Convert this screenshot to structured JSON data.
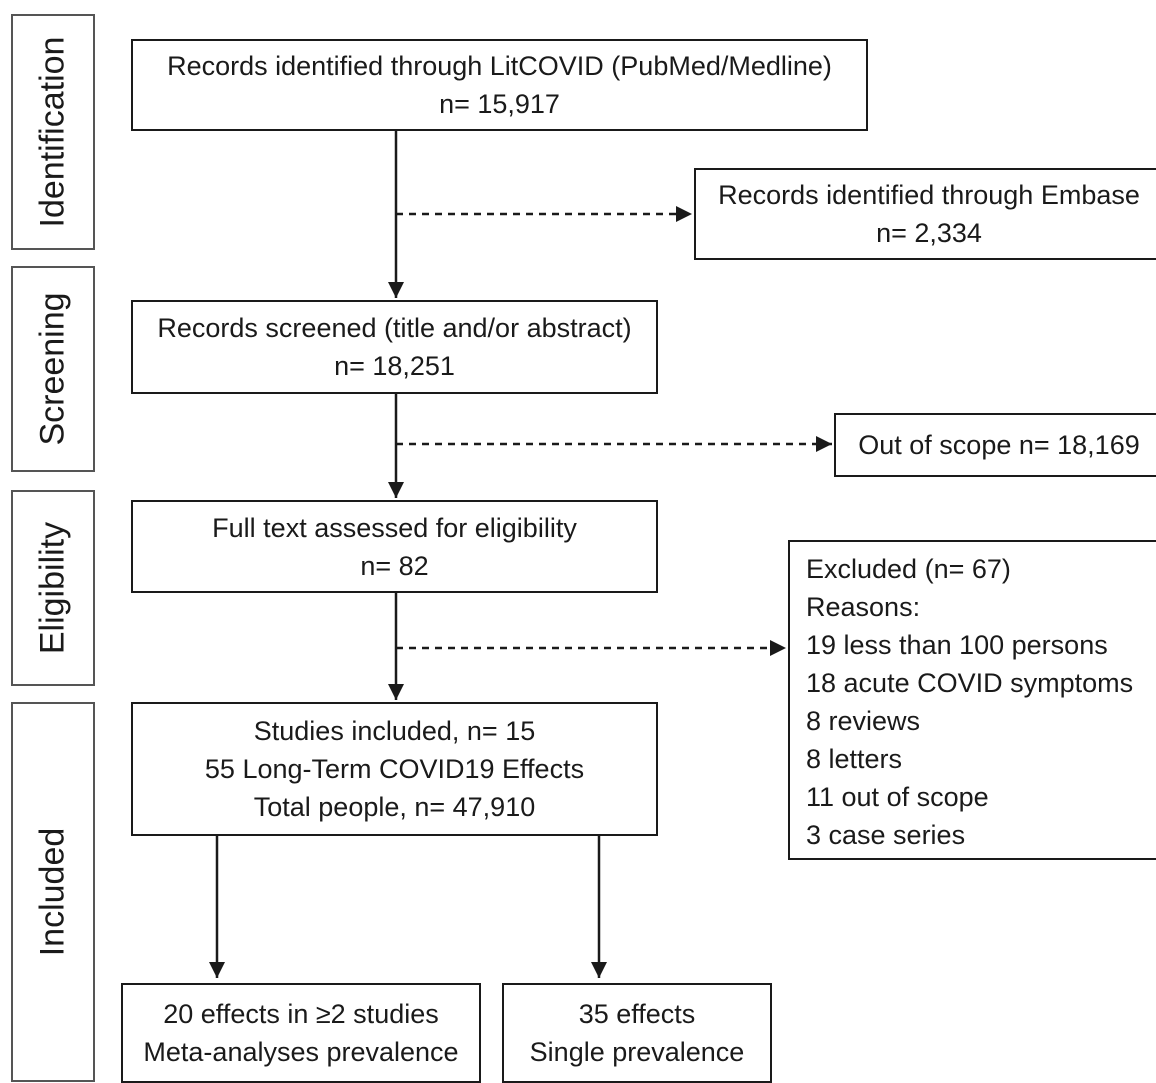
{
  "phases": {
    "identification": "Identification",
    "screening": "Screening",
    "eligibility": "Eligibility",
    "included": "Included"
  },
  "boxes": {
    "litcovid": [
      "Records identified through LitCOVID (PubMed/Medline)",
      "n= 15,917"
    ],
    "embase": [
      "Records identified through Embase",
      "n= 2,334"
    ],
    "screened": [
      "Records screened (title and/or abstract)",
      "n= 18,251"
    ],
    "out_of_scope": [
      "Out of scope n= 18,169"
    ],
    "full_text": [
      "Full text assessed for eligibility",
      "n= 82"
    ],
    "excluded": [
      "Excluded (n= 67)",
      "Reasons:",
      "19 less than 100 persons",
      "18 acute COVID symptoms",
      "8 reviews",
      "8 letters",
      "11 out of scope",
      "3 case series"
    ],
    "included": [
      "Studies included, n= 15",
      "55 Long-Term COVID19 Effects",
      "Total people, n= 47,910"
    ],
    "meta": [
      "20 effects in ≥2 studies",
      "Meta-analyses prevalence"
    ],
    "single": [
      "35 effects",
      "Single prevalence"
    ]
  }
}
